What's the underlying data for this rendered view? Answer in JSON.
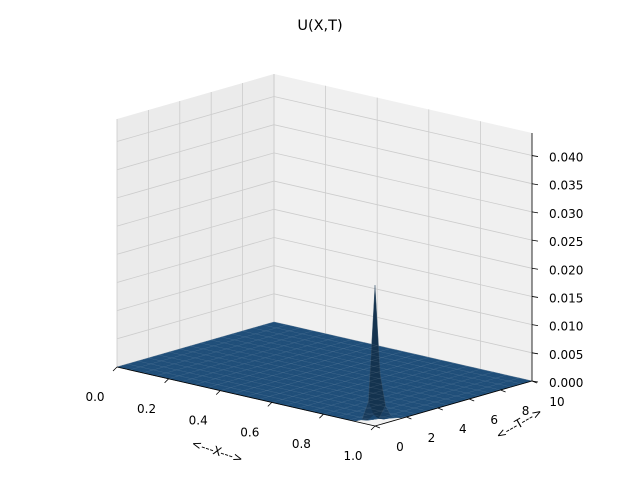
{
  "chart_data": {
    "type": "surface",
    "title": "U(X,T)",
    "xlabel": "<---X--->",
    "ylabel": "<---T--->",
    "zlabel": "",
    "xlim": [
      0.0,
      1.0
    ],
    "ylim": [
      0,
      10
    ],
    "zlim": [
      0.0,
      0.044
    ],
    "x_ticks": [
      "0.0",
      "0.2",
      "0.4",
      "0.6",
      "0.8",
      "1.0"
    ],
    "y_ticks": [
      "0",
      "2",
      "4",
      "6",
      "8",
      "10"
    ],
    "z_ticks": [
      "0.000",
      "0.005",
      "0.010",
      "0.015",
      "0.020",
      "0.025",
      "0.030",
      "0.035",
      "0.040"
    ],
    "grid": true,
    "surface_color": "#1f4e79",
    "peak": {
      "x": 1.0,
      "t": 0.0,
      "u": 0.025
    },
    "description_points": [
      {
        "x": 0.0,
        "t": 0,
        "u": 0.0
      },
      {
        "x": 0.9,
        "t": 0,
        "u": 0.0
      },
      {
        "x": 1.0,
        "t": 0,
        "u": 0.025
      },
      {
        "x": 1.0,
        "t": 1,
        "u": 0.004
      },
      {
        "x": 1.0,
        "t": 2,
        "u": 0.001
      },
      {
        "x": 1.0,
        "t": 10,
        "u": 0.0
      }
    ]
  }
}
